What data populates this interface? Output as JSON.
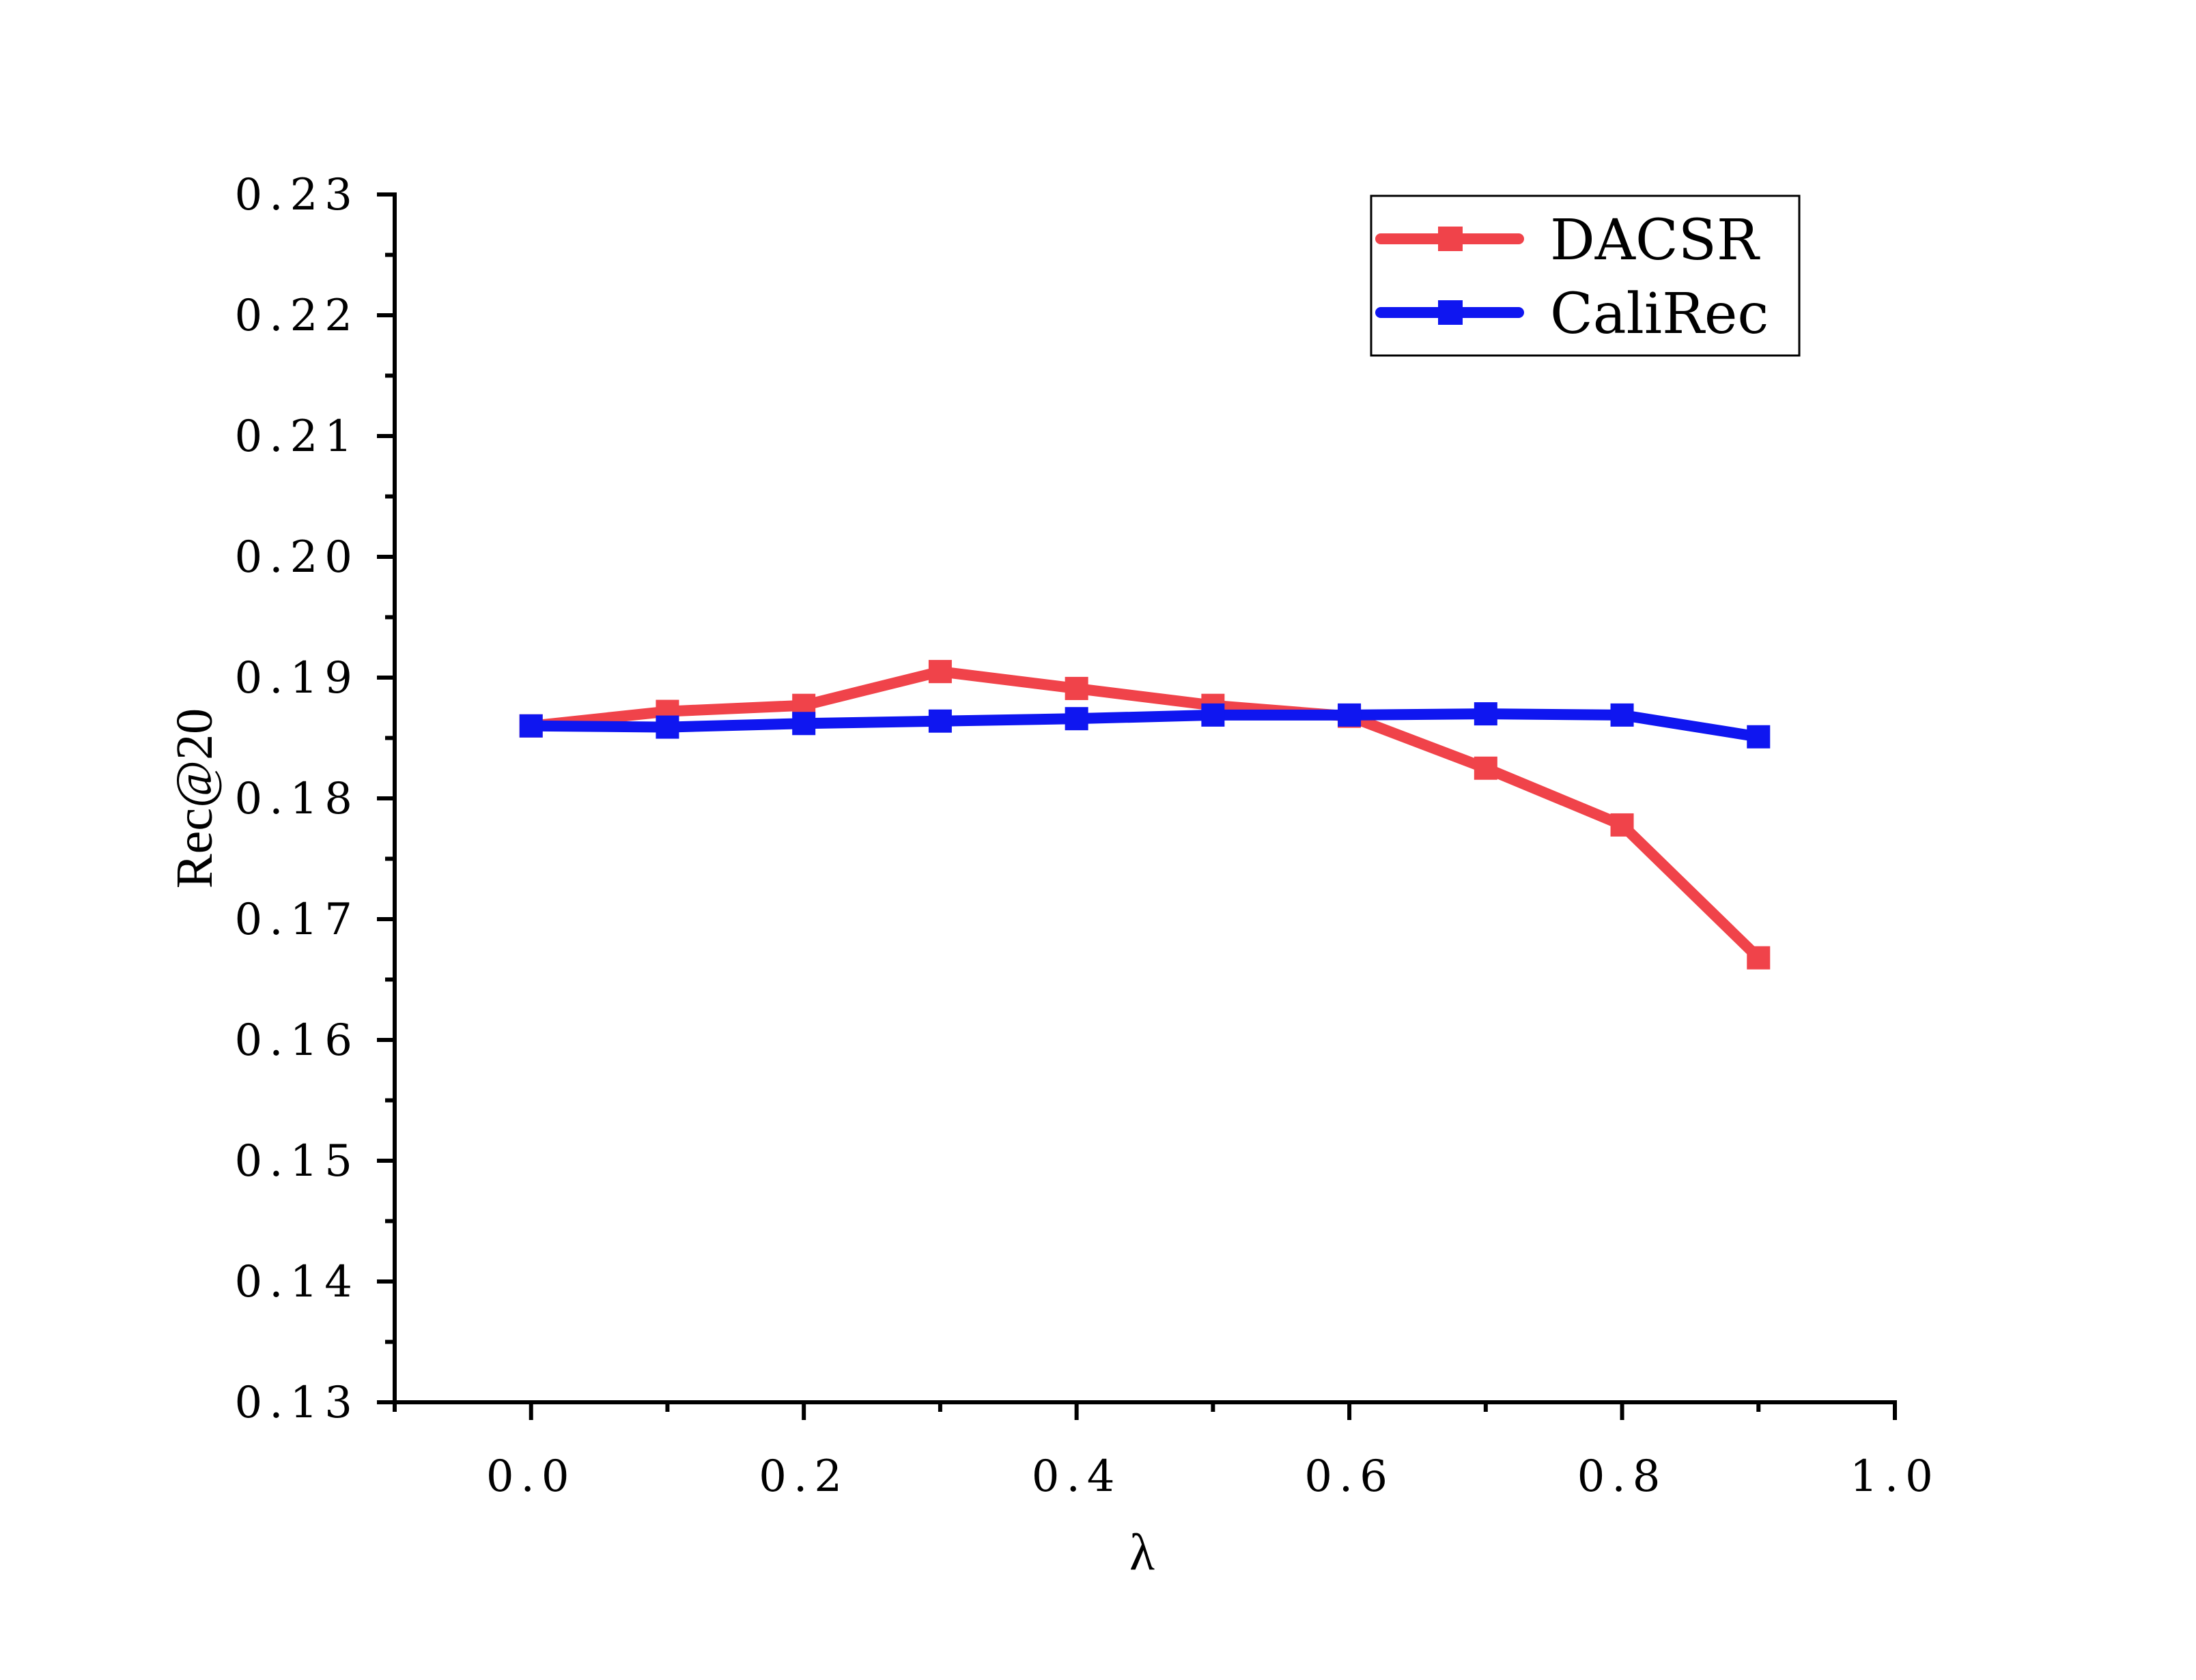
{
  "chart_data": {
    "type": "line",
    "title": "",
    "xlabel": "λ",
    "ylabel": "Rec@20",
    "xlim": [
      -0.1,
      1.0
    ],
    "ylim": [
      0.13,
      0.23
    ],
    "x_ticks": [
      0.0,
      0.2,
      0.4,
      0.6,
      0.8,
      1.0
    ],
    "x_tick_labels": [
      "0.0",
      "0.2",
      "0.4",
      "0.6",
      "0.8",
      "1.0"
    ],
    "y_ticks": [
      0.13,
      0.14,
      0.15,
      0.16,
      0.17,
      0.18,
      0.19,
      0.2,
      0.21,
      0.22,
      0.23
    ],
    "y_tick_labels": [
      "0.13",
      "0.14",
      "0.15",
      "0.16",
      "0.17",
      "0.18",
      "0.19",
      "0.20",
      "0.21",
      "0.22",
      "0.23"
    ],
    "grid": false,
    "legend_position": "top-right",
    "x": [
      0.0,
      0.1,
      0.2,
      0.3,
      0.4,
      0.5,
      0.6,
      0.7,
      0.8,
      0.9
    ],
    "series": [
      {
        "name": "DACSR",
        "color": "#f0434a",
        "marker": "square",
        "values": [
          0.186,
          0.1872,
          0.1877,
          0.1905,
          0.1891,
          0.1877,
          0.1868,
          0.1825,
          0.1778,
          0.1668
        ]
      },
      {
        "name": "CaliRec",
        "color": "#0f16f0",
        "marker": "square",
        "values": [
          0.186,
          0.1859,
          0.1862,
          0.1864,
          0.1866,
          0.1869,
          0.1869,
          0.187,
          0.1869,
          0.1851
        ]
      }
    ]
  }
}
